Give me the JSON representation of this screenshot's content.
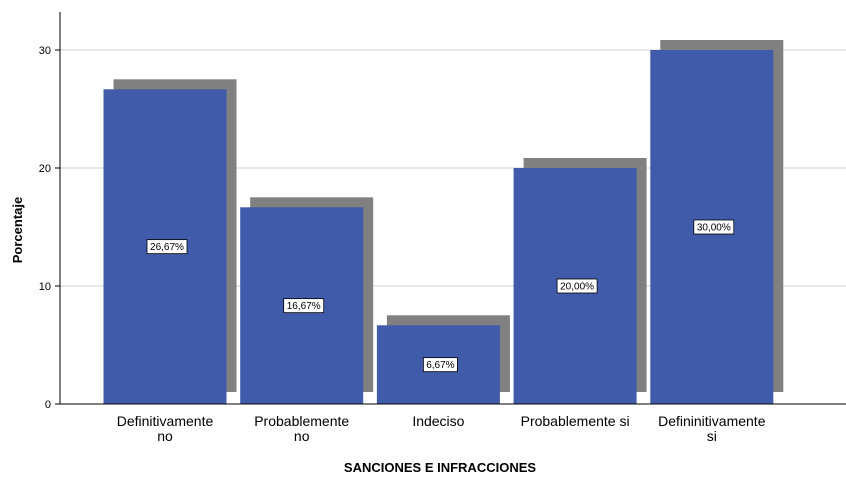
{
  "chart_data": {
    "type": "bar",
    "xlabel": "SANCIONES E INFRACCIONES",
    "ylabel": "Porcentaje",
    "ylim": [
      0,
      33
    ],
    "yticks": [
      0,
      10,
      20,
      30
    ],
    "ytick_labels": [
      "0",
      "10",
      "20",
      "30"
    ],
    "grid": true,
    "categories": [
      [
        "Definitivamente",
        "no"
      ],
      [
        "Probablemente",
        "no"
      ],
      [
        "Indeciso"
      ],
      [
        "Probablemente si"
      ],
      [
        "Defininitivamente",
        "si"
      ]
    ],
    "values": [
      26.67,
      16.67,
      6.67,
      20.0,
      30.0
    ],
    "value_labels": [
      "26,67%",
      "16,67%",
      "6,67%",
      "20,00%",
      "30,00%"
    ],
    "colors": {
      "bar": "#3f5ba9",
      "shadow": "#808080",
      "grid": "#d0d0d0",
      "axis": "#000000"
    }
  }
}
